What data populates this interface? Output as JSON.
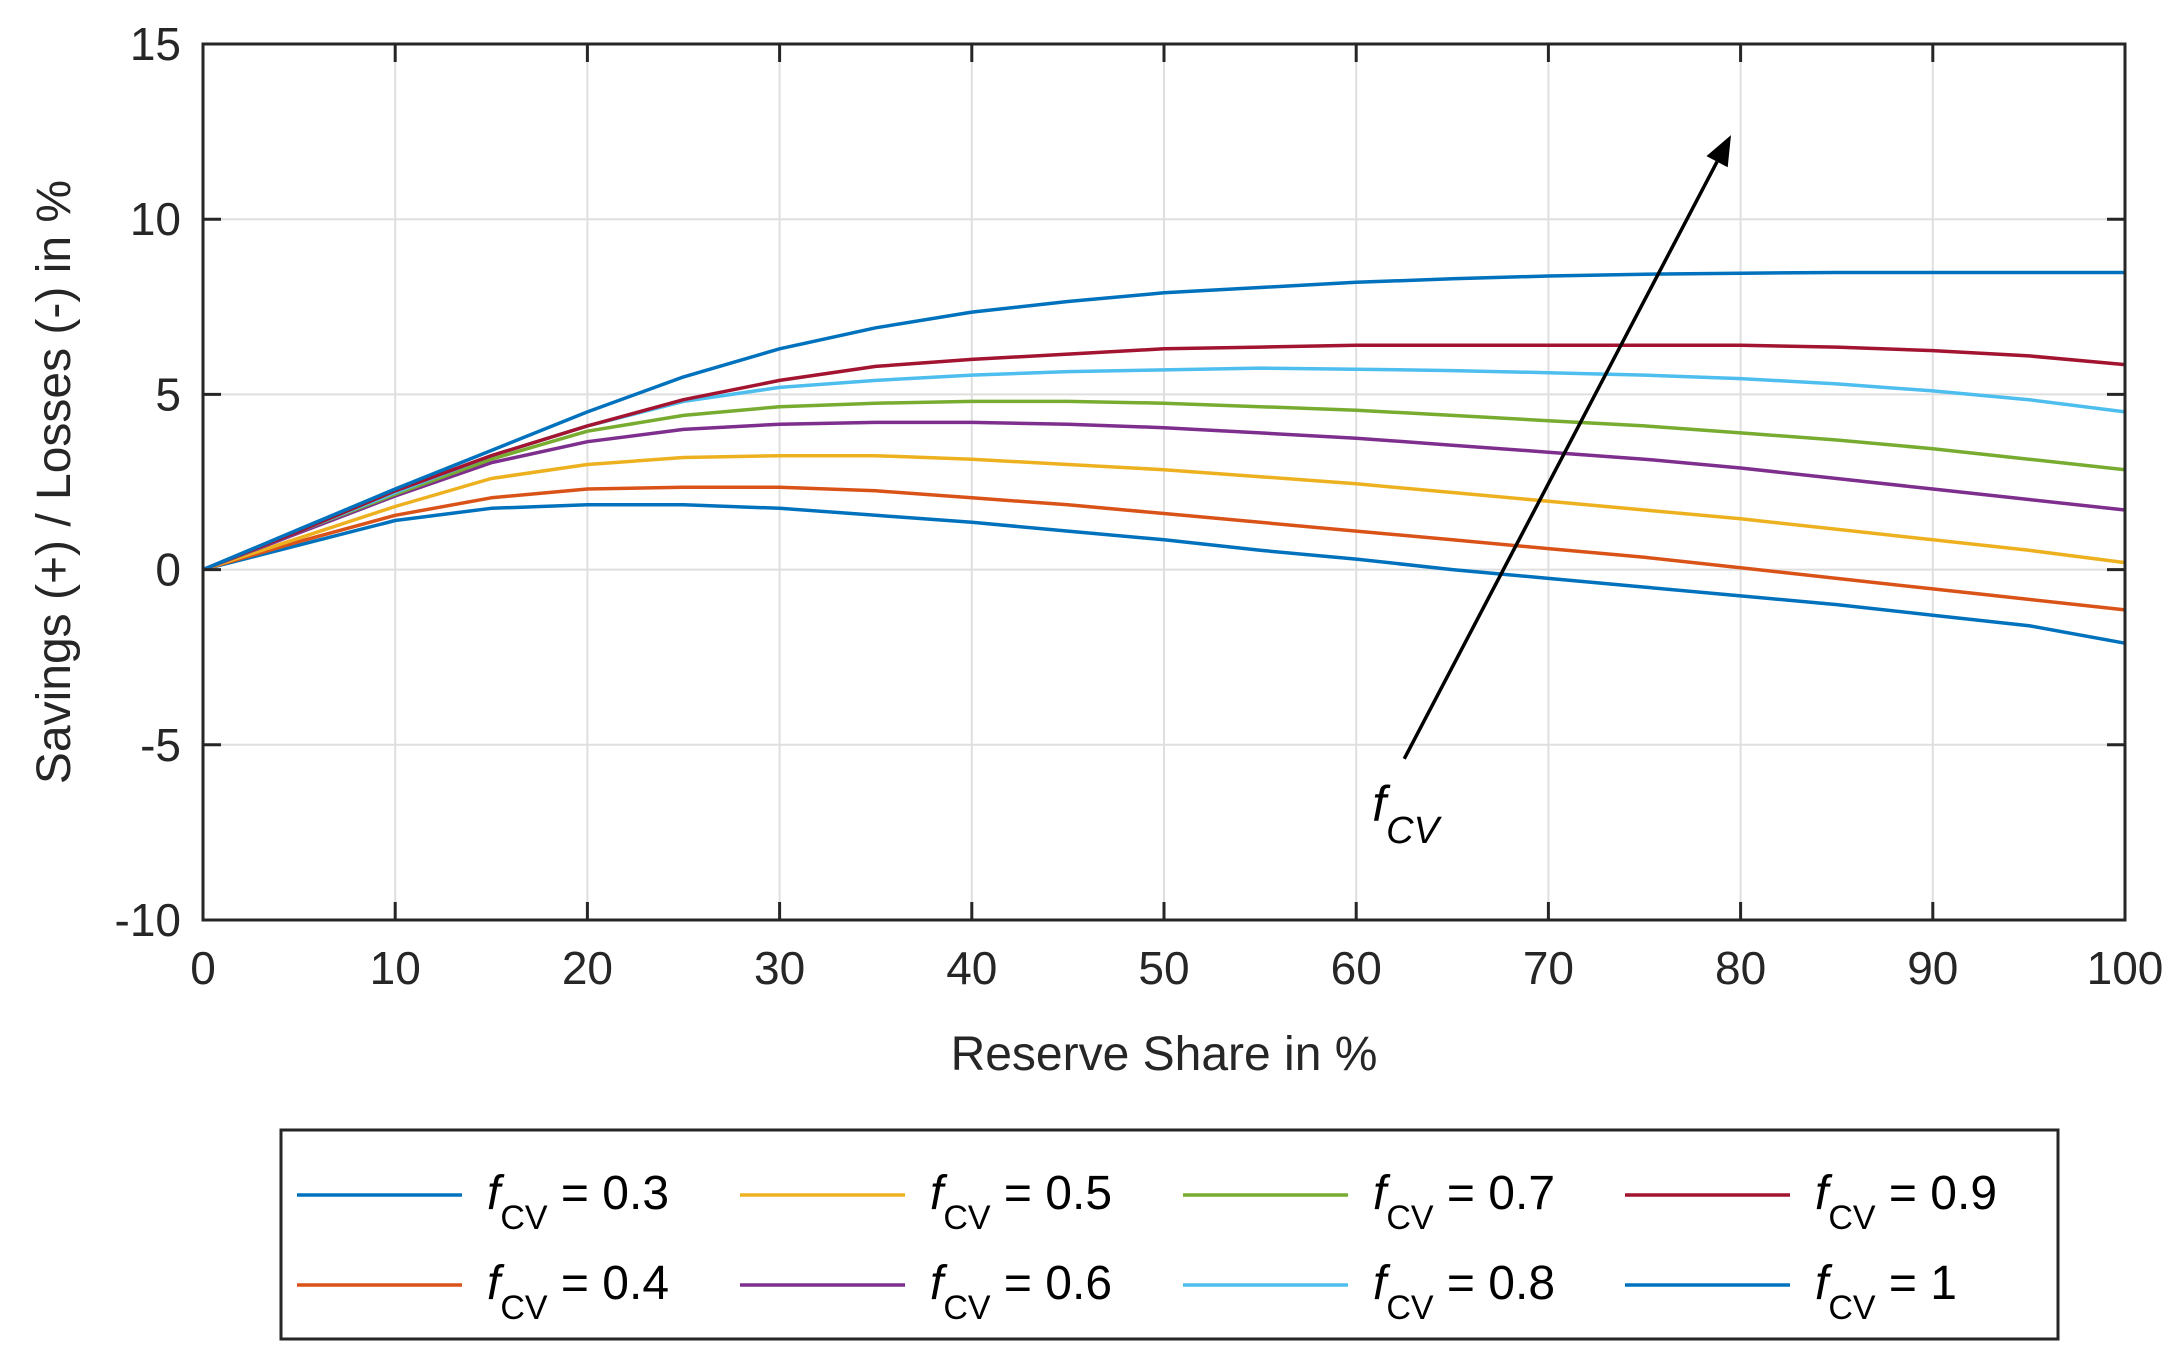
{
  "chart_data": {
    "type": "line",
    "title": "",
    "xlabel": "Reserve Share in %",
    "ylabel": "Savings (+) / Losses (-) in %",
    "xlim": [
      0,
      100
    ],
    "ylim": [
      -10,
      15
    ],
    "xticks": [
      0,
      10,
      20,
      30,
      40,
      50,
      60,
      70,
      80,
      90,
      100
    ],
    "yticks": [
      -10,
      -5,
      0,
      5,
      10,
      15
    ],
    "grid": true,
    "legend_position": "bottom",
    "x": [
      0,
      5,
      10,
      15,
      20,
      25,
      30,
      35,
      40,
      45,
      50,
      55,
      60,
      65,
      70,
      75,
      80,
      85,
      90,
      95,
      100
    ],
    "series": [
      {
        "name": "0.3",
        "symbol": "f",
        "sub": "CV",
        "color": "#0072BD",
        "values": [
          0,
          0.7,
          1.4,
          1.75,
          1.85,
          1.85,
          1.75,
          1.55,
          1.35,
          1.1,
          0.85,
          0.55,
          0.3,
          0.0,
          -0.25,
          -0.5,
          -0.75,
          -1.0,
          -1.3,
          -1.6,
          -2.1
        ]
      },
      {
        "name": "0.4",
        "symbol": "f",
        "sub": "CV",
        "color": "#D95319",
        "values": [
          0,
          0.8,
          1.55,
          2.05,
          2.3,
          2.35,
          2.35,
          2.25,
          2.05,
          1.85,
          1.6,
          1.35,
          1.1,
          0.85,
          0.6,
          0.35,
          0.05,
          -0.25,
          -0.55,
          -0.85,
          -1.15
        ]
      },
      {
        "name": "0.5",
        "symbol": "f",
        "sub": "CV",
        "color": "#EDB120",
        "values": [
          0,
          0.9,
          1.8,
          2.6,
          3.0,
          3.2,
          3.25,
          3.25,
          3.15,
          3.0,
          2.85,
          2.65,
          2.45,
          2.2,
          1.95,
          1.7,
          1.45,
          1.15,
          0.85,
          0.55,
          0.2
        ]
      },
      {
        "name": "0.6",
        "symbol": "f",
        "sub": "CV",
        "color": "#7E2F8E",
        "values": [
          0,
          1.05,
          2.1,
          3.05,
          3.65,
          4.0,
          4.15,
          4.2,
          4.2,
          4.15,
          4.05,
          3.9,
          3.75,
          3.55,
          3.35,
          3.15,
          2.9,
          2.6,
          2.3,
          2.0,
          1.7
        ]
      },
      {
        "name": "0.7",
        "symbol": "f",
        "sub": "CV",
        "color": "#77AC30",
        "values": [
          0,
          1.1,
          2.15,
          3.15,
          3.95,
          4.4,
          4.65,
          4.75,
          4.8,
          4.8,
          4.75,
          4.65,
          4.55,
          4.4,
          4.25,
          4.1,
          3.9,
          3.7,
          3.45,
          3.15,
          2.85
        ]
      },
      {
        "name": "0.8",
        "symbol": "f",
        "sub": "CV",
        "color": "#4DBEEE",
        "values": [
          0,
          1.1,
          2.2,
          3.25,
          4.1,
          4.8,
          5.2,
          5.4,
          5.55,
          5.65,
          5.7,
          5.75,
          5.72,
          5.68,
          5.62,
          5.55,
          5.45,
          5.3,
          5.1,
          4.85,
          4.5
        ]
      },
      {
        "name": "0.9",
        "symbol": "f",
        "sub": "CV",
        "color": "#A2142F",
        "values": [
          0,
          1.1,
          2.25,
          3.25,
          4.1,
          4.85,
          5.4,
          5.8,
          6.0,
          6.15,
          6.3,
          6.35,
          6.4,
          6.4,
          6.4,
          6.4,
          6.4,
          6.35,
          6.25,
          6.1,
          5.85
        ]
      },
      {
        "name": "1",
        "symbol": "f",
        "sub": "CV",
        "color": "#0072BD",
        "values": [
          0,
          1.15,
          2.3,
          3.4,
          4.5,
          5.5,
          6.3,
          6.9,
          7.35,
          7.65,
          7.9,
          8.05,
          8.2,
          8.3,
          8.38,
          8.43,
          8.46,
          8.48,
          8.48,
          8.48,
          8.48
        ]
      }
    ],
    "annotation": {
      "symbol": "f",
      "sub": "CV",
      "from": [
        62.5,
        -5.4
      ],
      "to": [
        79.5,
        12.4
      ]
    }
  }
}
